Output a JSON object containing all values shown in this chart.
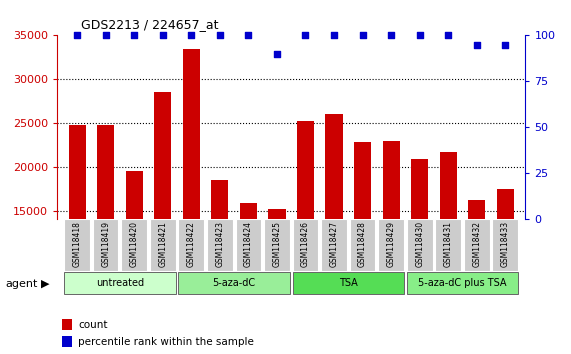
{
  "title": "GDS2213 / 224657_at",
  "samples": [
    "GSM118418",
    "GSM118419",
    "GSM118420",
    "GSM118421",
    "GSM118422",
    "GSM118423",
    "GSM118424",
    "GSM118425",
    "GSM118426",
    "GSM118427",
    "GSM118428",
    "GSM118429",
    "GSM118430",
    "GSM118431",
    "GSM118432",
    "GSM118433"
  ],
  "counts": [
    24800,
    24800,
    19500,
    28500,
    33500,
    18500,
    15900,
    15200,
    25200,
    26000,
    22800,
    22900,
    20900,
    21700,
    16200,
    17500
  ],
  "percentile_ranks": [
    100,
    100,
    100,
    100,
    100,
    100,
    100,
    90,
    100,
    100,
    100,
    100,
    100,
    100,
    95,
    95
  ],
  "bar_color": "#cc0000",
  "dot_color": "#0000cc",
  "ylim_left": [
    14000,
    35000
  ],
  "ylim_right": [
    0,
    100
  ],
  "yticks_left": [
    15000,
    20000,
    25000,
    30000,
    35000
  ],
  "yticks_right": [
    0,
    25,
    50,
    75,
    100
  ],
  "groups": [
    {
      "label": "untreated",
      "start": 0,
      "end": 3,
      "color": "#ccffcc"
    },
    {
      "label": "5-aza-dC",
      "start": 4,
      "end": 7,
      "color": "#99ee99"
    },
    {
      "label": "TSA",
      "start": 8,
      "end": 11,
      "color": "#55dd55"
    },
    {
      "label": "5-aza-dC plus TSA",
      "start": 12,
      "end": 15,
      "color": "#88ee88"
    }
  ],
  "agent_label": "agent",
  "legend_count_label": "count",
  "legend_pct_label": "percentile rank within the sample",
  "tick_color_left": "#cc0000",
  "tick_color_right": "#0000cc"
}
